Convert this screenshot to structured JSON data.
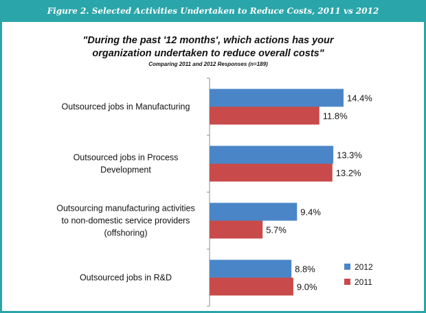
{
  "figure_title": "Figure 2. Selected Activities Undertaken to Reduce Costs, 2011 vs 2012",
  "chart_data": {
    "type": "bar",
    "orientation": "horizontal",
    "title_lines": [
      "\"During the past '12 months', which actions has your",
      "organization undertaken to reduce overall costs\""
    ],
    "subtitle": "Comparing 2011 and 2012 Responses (n=189)",
    "categories": [
      [
        "Outsourced jobs in Manufacturing"
      ],
      [
        "Outsourced jobs in Process",
        "Development"
      ],
      [
        "Outsourcing manufacturing activities",
        "to non-domestic service providers",
        "(offshoring)"
      ],
      [
        "Outsourced jobs in R&D"
      ]
    ],
    "series": [
      {
        "name": "2012",
        "color": "#4a86c7",
        "values": [
          14.4,
          13.3,
          9.4,
          8.8
        ],
        "labels": [
          "14.4%",
          "13.3%",
          "9.4%",
          "8.8%"
        ]
      },
      {
        "name": "2011",
        "color": "#c94a4a",
        "values": [
          11.8,
          13.2,
          5.7,
          9.0
        ],
        "labels": [
          "11.8%",
          "13.2%",
          "5.7%",
          "9.0%"
        ]
      }
    ],
    "xlim": [
      0,
      16
    ],
    "grid": false,
    "legend_position": "bottom-right"
  }
}
